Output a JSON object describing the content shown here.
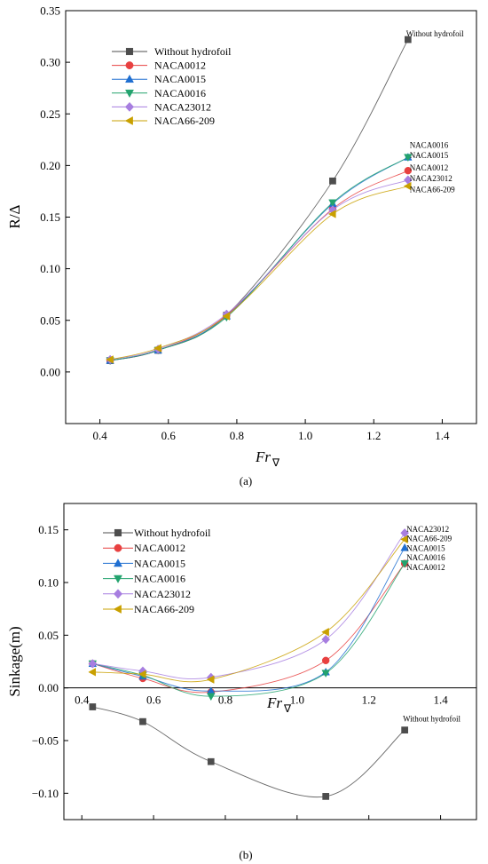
{
  "chart_data": [
    {
      "type": "line",
      "caption": "(a)",
      "xlabel": "Fr",
      "xlabel_sub": "∇",
      "ylabel": "R/Δ",
      "xlim": [
        0.3,
        1.5
      ],
      "ylim": [
        -0.05,
        0.35
      ],
      "xticks": [
        0.4,
        0.6,
        0.8,
        1.0,
        1.2,
        1.4
      ],
      "xtick_labels": [
        "0.4",
        "0.6",
        "0.8",
        "1.0",
        "1.2",
        "1.4"
      ],
      "yticks": [
        0.0,
        0.05,
        0.1,
        0.15,
        0.2,
        0.25,
        0.3,
        0.35
      ],
      "ytick_labels": [
        "0.00",
        "0.05",
        "0.10",
        "0.15",
        "0.20",
        "0.25",
        "0.30",
        "0.35"
      ],
      "x": [
        0.43,
        0.57,
        0.77,
        1.08,
        1.3
      ],
      "legend_position": "top-left",
      "series": [
        {
          "name": "Without hydrofoil",
          "marker": "square",
          "color": "#4d4d4d",
          "values": [
            0.011,
            0.021,
            0.055,
            0.185,
            0.322
          ],
          "end_label": "Without hydrofoil"
        },
        {
          "name": "NACA0012",
          "marker": "circle",
          "color": "#e84040",
          "values": [
            0.011,
            0.021,
            0.055,
            0.158,
            0.195
          ],
          "end_label": "NACA0012"
        },
        {
          "name": "NACA0015",
          "marker": "triangle-up",
          "color": "#1f6fd1",
          "values": [
            0.011,
            0.021,
            0.054,
            0.163,
            0.208
          ],
          "end_label": "NACA0015"
        },
        {
          "name": "NACA0016",
          "marker": "triangle-down",
          "color": "#23a36e",
          "values": [
            0.011,
            0.021,
            0.053,
            0.164,
            0.208
          ],
          "end_label": "NACA0016"
        },
        {
          "name": "NACA23012",
          "marker": "diamond",
          "color": "#a77ee0",
          "values": [
            0.012,
            0.022,
            0.056,
            0.157,
            0.186
          ],
          "end_label": "NACA23012"
        },
        {
          "name": "NACA66-209",
          "marker": "triangle-left",
          "color": "#c9a000",
          "values": [
            0.012,
            0.023,
            0.054,
            0.153,
            0.18
          ],
          "end_label": "NACA66-209"
        }
      ]
    },
    {
      "type": "line",
      "caption": "(b)",
      "xlabel": "Fr",
      "xlabel_sub": "∇",
      "ylabel": "Sinkage(m)",
      "xlim": [
        0.35,
        1.5
      ],
      "ylim": [
        -0.125,
        0.175
      ],
      "xticks": [
        0.4,
        0.6,
        0.8,
        1.0,
        1.2,
        1.4
      ],
      "xtick_labels": [
        "0.4",
        "0.6",
        "0.8",
        "1.0",
        "1.2",
        "1.4"
      ],
      "yticks": [
        -0.1,
        -0.05,
        0.0,
        0.05,
        0.1,
        0.15
      ],
      "ytick_labels": [
        "−0.10",
        "−0.05",
        "0.00",
        "0.05",
        "0.10",
        "0.15"
      ],
      "x": [
        0.43,
        0.57,
        0.76,
        1.08,
        1.3
      ],
      "legend_position": "top-left",
      "series": [
        {
          "name": "Without hydrofoil",
          "marker": "square",
          "color": "#4d4d4d",
          "values": [
            -0.018,
            -0.032,
            -0.07,
            -0.103,
            -0.04
          ],
          "end_label": "Without hydrofoil"
        },
        {
          "name": "NACA0012",
          "marker": "circle",
          "color": "#e84040",
          "values": [
            0.023,
            0.009,
            -0.004,
            0.026,
            0.118
          ],
          "end_label": "NACA0012"
        },
        {
          "name": "NACA0015",
          "marker": "triangle-up",
          "color": "#1f6fd1",
          "values": [
            0.023,
            0.011,
            -0.003,
            0.015,
            0.133
          ],
          "end_label": "NACA0015"
        },
        {
          "name": "NACA0016",
          "marker": "triangle-down",
          "color": "#23a36e",
          "values": [
            0.023,
            0.012,
            -0.008,
            0.014,
            0.118
          ],
          "end_label": "NACA0016"
        },
        {
          "name": "NACA23012",
          "marker": "diamond",
          "color": "#a77ee0",
          "values": [
            0.023,
            0.016,
            0.01,
            0.046,
            0.147
          ],
          "end_label": "NACA23012"
        },
        {
          "name": "NACA66-209",
          "marker": "triangle-left",
          "color": "#c9a000",
          "values": [
            0.015,
            0.013,
            0.008,
            0.053,
            0.141
          ],
          "end_label": "NACA66-209"
        }
      ]
    }
  ]
}
